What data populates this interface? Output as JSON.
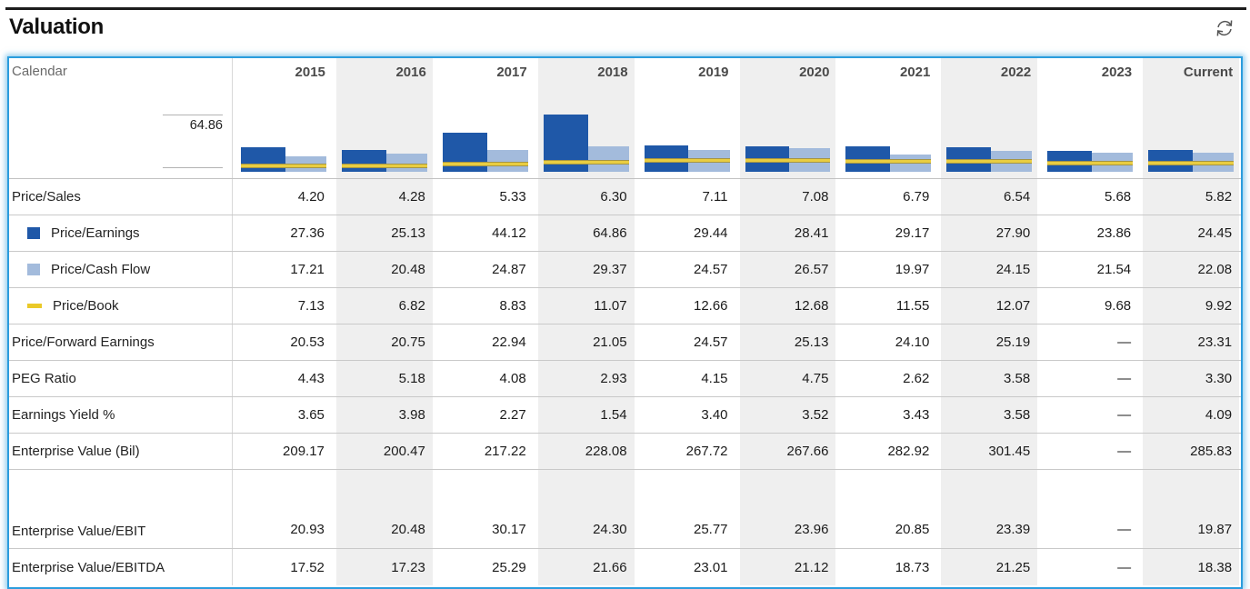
{
  "header": {
    "title": "Valuation"
  },
  "table": {
    "corner_label": "Calendar",
    "axis_max_label": "64.86",
    "columns": [
      "2015",
      "2016",
      "2017",
      "2018",
      "2019",
      "2020",
      "2021",
      "2022",
      "2023",
      "Current"
    ],
    "rows": [
      {
        "label": "Price/Sales",
        "swatch": null,
        "values": [
          "4.20",
          "4.28",
          "5.33",
          "6.30",
          "7.11",
          "7.08",
          "6.79",
          "6.54",
          "5.68",
          "5.82"
        ]
      },
      {
        "label": "Price/Earnings",
        "swatch": "dark-blue-square",
        "values": [
          "27.36",
          "25.13",
          "44.12",
          "64.86",
          "29.44",
          "28.41",
          "29.17",
          "27.90",
          "23.86",
          "24.45"
        ]
      },
      {
        "label": "Price/Cash Flow",
        "swatch": "light-blue-square",
        "values": [
          "17.21",
          "20.48",
          "24.87",
          "29.37",
          "24.57",
          "26.57",
          "19.97",
          "24.15",
          "21.54",
          "22.08"
        ]
      },
      {
        "label": "Price/Book",
        "swatch": "yellow-dash",
        "values": [
          "7.13",
          "6.82",
          "8.83",
          "11.07",
          "12.66",
          "12.68",
          "11.55",
          "12.07",
          "9.68",
          "9.92"
        ]
      },
      {
        "label": "Price/Forward Earnings",
        "swatch": null,
        "values": [
          "20.53",
          "20.75",
          "22.94",
          "21.05",
          "24.57",
          "25.13",
          "24.10",
          "25.19",
          "—",
          "23.31"
        ]
      },
      {
        "label": "PEG Ratio",
        "swatch": null,
        "values": [
          "4.43",
          "5.18",
          "4.08",
          "2.93",
          "4.15",
          "4.75",
          "2.62",
          "3.58",
          "—",
          "3.30"
        ]
      },
      {
        "label": "Earnings Yield %",
        "swatch": null,
        "values": [
          "3.65",
          "3.98",
          "2.27",
          "1.54",
          "3.40",
          "3.52",
          "3.43",
          "3.58",
          "—",
          "4.09"
        ]
      },
      {
        "label": "Enterprise Value (Bil)",
        "swatch": null,
        "values": [
          "209.17",
          "200.47",
          "217.22",
          "228.08",
          "267.72",
          "267.66",
          "282.92",
          "301.45",
          "—",
          "285.83"
        ]
      },
      {
        "label": "Enterprise Value/EBIT",
        "swatch": null,
        "spacer_before": true,
        "values": [
          "20.93",
          "20.48",
          "30.17",
          "24.30",
          "25.77",
          "23.96",
          "20.85",
          "23.39",
          "—",
          "19.87"
        ]
      },
      {
        "label": "Enterprise Value/EBITDA",
        "swatch": null,
        "last": true,
        "values": [
          "17.52",
          "17.23",
          "25.29",
          "21.66",
          "23.01",
          "21.12",
          "18.73",
          "21.25",
          "—",
          "18.38"
        ]
      }
    ]
  },
  "chart_data": {
    "type": "bar",
    "title": "Valuation",
    "categories": [
      "2015",
      "2016",
      "2017",
      "2018",
      "2019",
      "2020",
      "2021",
      "2022",
      "2023",
      "Current"
    ],
    "series": [
      {
        "name": "Price/Earnings",
        "type": "bar",
        "color": "#1f58a8",
        "values": [
          27.36,
          25.13,
          44.12,
          64.86,
          29.44,
          28.41,
          29.17,
          27.9,
          23.86,
          24.45
        ]
      },
      {
        "name": "Price/Cash Flow",
        "type": "bar",
        "color": "#a3bbdc",
        "values": [
          17.21,
          20.48,
          24.87,
          29.37,
          24.57,
          26.57,
          19.97,
          24.15,
          21.54,
          22.08
        ]
      },
      {
        "name": "Price/Book",
        "type": "line",
        "color": "#e9cd41",
        "values": [
          7.13,
          6.82,
          8.83,
          11.07,
          12.66,
          12.68,
          11.55,
          12.07,
          9.68,
          9.92
        ]
      }
    ],
    "xlabel": "Calendar",
    "ylabel": "",
    "ylim": [
      0,
      64.86
    ],
    "axis_max_label": "64.86",
    "grid": false,
    "legend_position": "left-row-labels",
    "band_columns": [
      "2016",
      "2018",
      "2020",
      "2022",
      "Current"
    ]
  },
  "colors": {
    "accent_border": "#2b9ddd",
    "band": "#efefef",
    "pe_bar": "#1f58a8",
    "pcf_bar": "#a3bbdc",
    "pb_line": "#e9cd41",
    "rule": "#1c1c1c"
  }
}
